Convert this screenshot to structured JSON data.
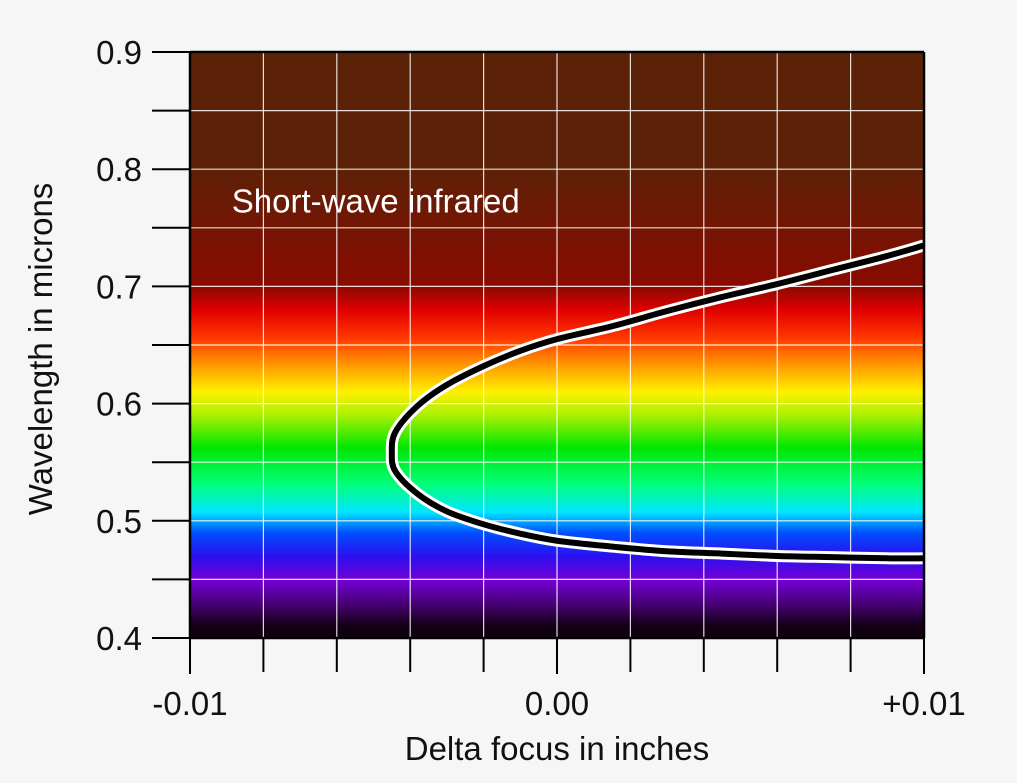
{
  "chart_data": {
    "type": "line",
    "title": "",
    "xlabel": "Delta focus in inches",
    "ylabel": "Wavelength in microns",
    "xlim": [
      -0.01,
      0.01
    ],
    "ylim": [
      0.4,
      0.9
    ],
    "x_tick_labels": [
      "-0.01",
      "0.00",
      "+0.01"
    ],
    "x_tick_values": [
      -0.01,
      0.0,
      0.01
    ],
    "y_tick_labels": [
      "0.4",
      "0.5",
      "0.6",
      "0.7",
      "0.8",
      "0.9"
    ],
    "y_tick_values": [
      0.4,
      0.5,
      0.6,
      0.7,
      0.8,
      0.9
    ],
    "grid": true,
    "legend": "none",
    "annotations": [
      {
        "text": "Short-wave infrared",
        "x": -0.0075,
        "y": 0.775
      }
    ],
    "series": [
      {
        "color": "#000000",
        "x": [
          0.01,
          0.009,
          0.0075,
          0.006,
          0.0045,
          0.003,
          0.0015,
          0.0,
          -0.001,
          -0.002,
          -0.003,
          -0.0038,
          -0.0044,
          -0.0045,
          -0.0044,
          -0.0038,
          -0.003,
          -0.002,
          -0.001,
          0.0,
          0.0015,
          0.003,
          0.0045,
          0.006,
          0.0075,
          0.009,
          0.01
        ],
        "y": [
          0.735,
          0.726,
          0.714,
          0.702,
          0.691,
          0.679,
          0.666,
          0.655,
          0.645,
          0.632,
          0.616,
          0.598,
          0.576,
          0.558,
          0.542,
          0.523,
          0.508,
          0.497,
          0.489,
          0.483,
          0.478,
          0.474,
          0.472,
          0.47,
          0.469,
          0.468,
          0.468
        ]
      }
    ],
    "background_bands": [
      {
        "from": 0.4,
        "to": 0.42,
        "color": "#120012"
      },
      {
        "from": 0.42,
        "to": 0.44,
        "color": "#4a007a"
      },
      {
        "from": 0.44,
        "to": 0.46,
        "color": "#7300d6"
      },
      {
        "from": 0.46,
        "to": 0.48,
        "color": "#2a10f0"
      },
      {
        "from": 0.48,
        "to": 0.5,
        "color": "#0050ff"
      },
      {
        "from": 0.5,
        "to": 0.515,
        "color": "#00e6ff"
      },
      {
        "from": 0.515,
        "to": 0.545,
        "color": "#00ff80"
      },
      {
        "from": 0.545,
        "to": 0.58,
        "color": "#00e600"
      },
      {
        "from": 0.58,
        "to": 0.6,
        "color": "#aaf000"
      },
      {
        "from": 0.6,
        "to": 0.62,
        "color": "#fff000"
      },
      {
        "from": 0.62,
        "to": 0.645,
        "color": "#ff9900"
      },
      {
        "from": 0.645,
        "to": 0.67,
        "color": "#ff3300"
      },
      {
        "from": 0.67,
        "to": 0.69,
        "color": "#e00000"
      },
      {
        "from": 0.69,
        "to": 0.71,
        "color": "#8a0a00"
      },
      {
        "from": 0.71,
        "to": 0.9,
        "color": "#5c2208"
      }
    ]
  }
}
